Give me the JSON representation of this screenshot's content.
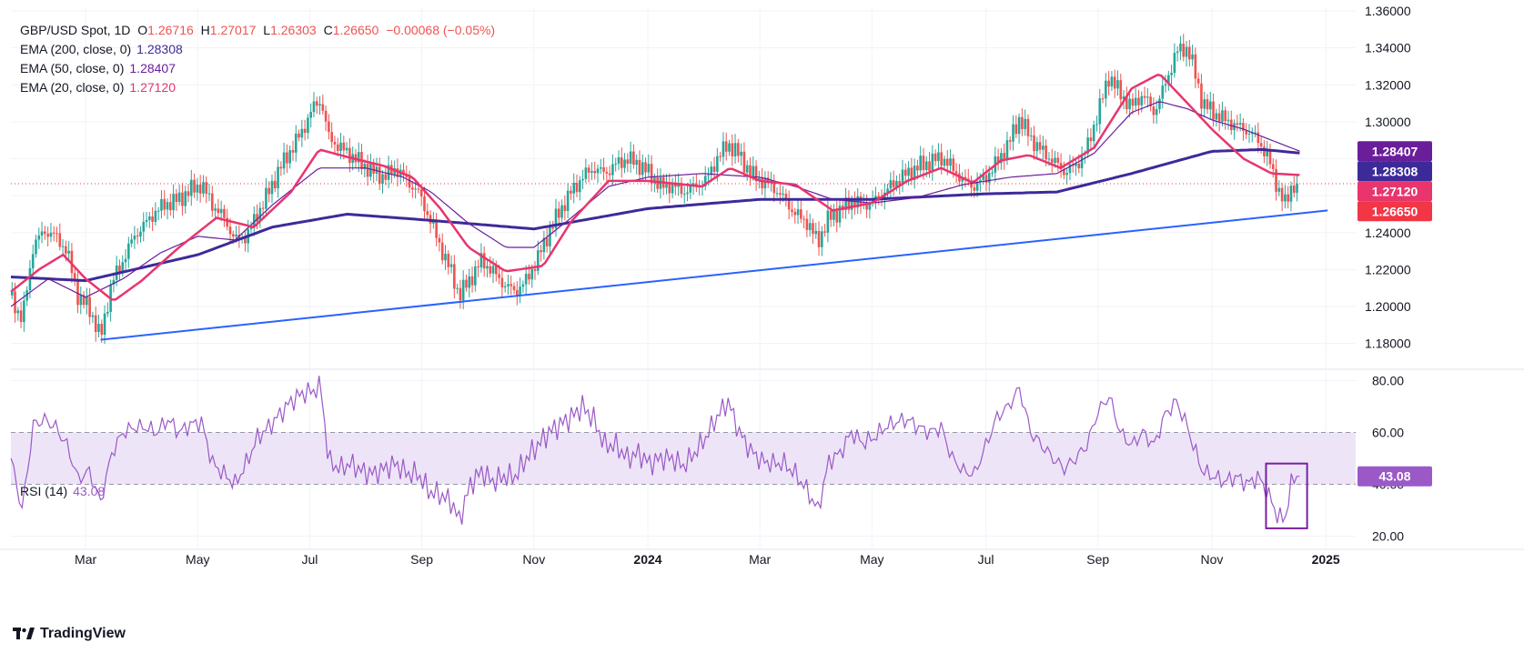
{
  "header": {
    "symbol": "GBP/USD Spot, 1D",
    "o_label": "O",
    "o_value": "1.26716",
    "h_label": "H",
    "h_value": "1.27017",
    "l_label": "L",
    "l_value": "1.26303",
    "c_label": "C",
    "c_value": "1.26650",
    "change": "−0.00068 (−0.05%)"
  },
  "indicators": {
    "ema200": {
      "label": "EMA (200, close, 0)",
      "value": "1.28308",
      "color": "#3d2a9a"
    },
    "ema50": {
      "label": "EMA (50, close, 0)",
      "value": "1.28407",
      "color": "#6a1e9a"
    },
    "ema20": {
      "label": "EMA (20, close, 0)",
      "value": "1.27120",
      "color": "#e8356d"
    },
    "rsi": {
      "label": "RSI (14)",
      "value": "43.08",
      "color": "#9b59c8"
    }
  },
  "colors": {
    "up": "#26a69a",
    "down": "#ef5350",
    "trendline": "#2962ff",
    "rsi_band": "#ede5f7",
    "price_line": "#f23645"
  },
  "branding": {
    "text": "TradingView",
    "icon": "tradingview-logo-icon"
  },
  "chart_data": {
    "type": "candlestick",
    "price_axis": {
      "ticks": [
        "1.36000",
        "1.34000",
        "1.32000",
        "1.30000",
        "1.28000",
        "1.26000",
        "1.24000",
        "1.22000",
        "1.20000",
        "1.18000"
      ],
      "tick_values": [
        1.36,
        1.34,
        1.32,
        1.3,
        1.28,
        1.26,
        1.24,
        1.22,
        1.2,
        1.18
      ],
      "range": [
        1.168,
        1.362
      ]
    },
    "price_badges": [
      {
        "value": 1.28407,
        "text": "1.28407",
        "color": "#6a1e9a"
      },
      {
        "value": 1.28308,
        "text": "1.28308",
        "color": "#3d2a9a"
      },
      {
        "value": 1.2712,
        "text": "1.27120",
        "color": "#e8356d"
      },
      {
        "value": 1.2665,
        "text": "1.26650",
        "color": "#f23645"
      }
    ],
    "rsi_axis": {
      "ticks": [
        "80.00",
        "60.00",
        "40.00",
        "20.00"
      ],
      "tick_values": [
        80,
        60,
        40,
        20
      ],
      "range": [
        17,
        83
      ],
      "band": [
        40,
        60
      ],
      "badge": {
        "value": 43.08,
        "text": "43.08"
      }
    },
    "time_axis": {
      "labels": [
        "Mar",
        "May",
        "Jul",
        "Sep",
        "Nov",
        "2024",
        "Mar",
        "May",
        "Jul",
        "Sep",
        "Nov",
        "2025"
      ],
      "bold": [
        false,
        false,
        false,
        false,
        false,
        true,
        false,
        false,
        false,
        false,
        false,
        true
      ],
      "positions": [
        40,
        100,
        160,
        220,
        280,
        341,
        401,
        461,
        522,
        582,
        643,
        704
      ]
    },
    "ema200_points": [
      [
        0,
        1.216
      ],
      [
        40,
        1.214
      ],
      [
        100,
        1.228
      ],
      [
        140,
        1.243
      ],
      [
        180,
        1.25
      ],
      [
        220,
        1.247
      ],
      [
        280,
        1.242
      ],
      [
        341,
        1.253
      ],
      [
        401,
        1.258
      ],
      [
        461,
        1.258
      ],
      [
        522,
        1.261
      ],
      [
        560,
        1.262
      ],
      [
        600,
        1.272
      ],
      [
        643,
        1.284
      ],
      [
        670,
        1.285
      ],
      [
        690,
        1.2831
      ]
    ],
    "ema50_points": [
      [
        0,
        1.2
      ],
      [
        20,
        1.215
      ],
      [
        40,
        1.205
      ],
      [
        60,
        1.215
      ],
      [
        80,
        1.229
      ],
      [
        100,
        1.238
      ],
      [
        120,
        1.236
      ],
      [
        140,
        1.255
      ],
      [
        165,
        1.275
      ],
      [
        190,
        1.275
      ],
      [
        210,
        1.27
      ],
      [
        225,
        1.262
      ],
      [
        245,
        1.245
      ],
      [
        265,
        1.232
      ],
      [
        280,
        1.232
      ],
      [
        300,
        1.248
      ],
      [
        320,
        1.265
      ],
      [
        341,
        1.27
      ],
      [
        370,
        1.272
      ],
      [
        401,
        1.27
      ],
      [
        420,
        1.265
      ],
      [
        440,
        1.258
      ],
      [
        461,
        1.256
      ],
      [
        485,
        1.259
      ],
      [
        510,
        1.266
      ],
      [
        535,
        1.27
      ],
      [
        560,
        1.272
      ],
      [
        580,
        1.283
      ],
      [
        600,
        1.305
      ],
      [
        615,
        1.311
      ],
      [
        630,
        1.307
      ],
      [
        643,
        1.301
      ],
      [
        660,
        1.296
      ],
      [
        675,
        1.29
      ],
      [
        690,
        1.2841
      ]
    ],
    "ema20_points": [
      [
        0,
        1.208
      ],
      [
        15,
        1.22
      ],
      [
        28,
        1.228
      ],
      [
        40,
        1.215
      ],
      [
        55,
        1.203
      ],
      [
        70,
        1.214
      ],
      [
        90,
        1.232
      ],
      [
        110,
        1.248
      ],
      [
        130,
        1.243
      ],
      [
        150,
        1.262
      ],
      [
        165,
        1.285
      ],
      [
        180,
        1.281
      ],
      [
        200,
        1.276
      ],
      [
        215,
        1.27
      ],
      [
        230,
        1.253
      ],
      [
        245,
        1.232
      ],
      [
        265,
        1.219
      ],
      [
        285,
        1.222
      ],
      [
        300,
        1.246
      ],
      [
        320,
        1.268
      ],
      [
        341,
        1.268
      ],
      [
        370,
        1.265
      ],
      [
        385,
        1.275
      ],
      [
        401,
        1.268
      ],
      [
        420,
        1.266
      ],
      [
        440,
        1.252
      ],
      [
        461,
        1.256
      ],
      [
        480,
        1.268
      ],
      [
        498,
        1.275
      ],
      [
        515,
        1.267
      ],
      [
        530,
        1.279
      ],
      [
        545,
        1.282
      ],
      [
        562,
        1.275
      ],
      [
        580,
        1.286
      ],
      [
        600,
        1.318
      ],
      [
        615,
        1.326
      ],
      [
        630,
        1.31
      ],
      [
        643,
        1.296
      ],
      [
        660,
        1.28
      ],
      [
        675,
        1.272
      ],
      [
        690,
        1.2712
      ]
    ],
    "close_points": [
      [
        0,
        1.206
      ],
      [
        6,
        1.192
      ],
      [
        12,
        1.233
      ],
      [
        18,
        1.241
      ],
      [
        24,
        1.238
      ],
      [
        30,
        1.23
      ],
      [
        36,
        1.205
      ],
      [
        42,
        1.199
      ],
      [
        48,
        1.183
      ],
      [
        54,
        1.213
      ],
      [
        60,
        1.225
      ],
      [
        66,
        1.238
      ],
      [
        72,
        1.245
      ],
      [
        78,
        1.252
      ],
      [
        84,
        1.256
      ],
      [
        90,
        1.258
      ],
      [
        96,
        1.263
      ],
      [
        102,
        1.266
      ],
      [
        108,
        1.255
      ],
      [
        114,
        1.248
      ],
      [
        120,
        1.236
      ],
      [
        126,
        1.238
      ],
      [
        132,
        1.25
      ],
      [
        138,
        1.262
      ],
      [
        144,
        1.275
      ],
      [
        150,
        1.285
      ],
      [
        156,
        1.295
      ],
      [
        162,
        1.308
      ],
      [
        166,
        1.312
      ],
      [
        170,
        1.292
      ],
      [
        176,
        1.286
      ],
      [
        182,
        1.282
      ],
      [
        188,
        1.277
      ],
      [
        194,
        1.273
      ],
      [
        200,
        1.27
      ],
      [
        206,
        1.275
      ],
      [
        212,
        1.268
      ],
      [
        218,
        1.262
      ],
      [
        224,
        1.248
      ],
      [
        230,
        1.232
      ],
      [
        236,
        1.218
      ],
      [
        240,
        1.206
      ],
      [
        246,
        1.215
      ],
      [
        252,
        1.225
      ],
      [
        258,
        1.219
      ],
      [
        264,
        1.212
      ],
      [
        270,
        1.208
      ],
      [
        276,
        1.214
      ],
      [
        282,
        1.226
      ],
      [
        288,
        1.24
      ],
      [
        294,
        1.252
      ],
      [
        300,
        1.262
      ],
      [
        306,
        1.27
      ],
      [
        312,
        1.275
      ],
      [
        318,
        1.272
      ],
      [
        324,
        1.277
      ],
      [
        330,
        1.28
      ],
      [
        336,
        1.277
      ],
      [
        342,
        1.272
      ],
      [
        348,
        1.265
      ],
      [
        354,
        1.266
      ],
      [
        360,
        1.262
      ],
      [
        366,
        1.265
      ],
      [
        372,
        1.268
      ],
      [
        378,
        1.28
      ],
      [
        384,
        1.288
      ],
      [
        390,
        1.282
      ],
      [
        396,
        1.272
      ],
      [
        402,
        1.268
      ],
      [
        408,
        1.265
      ],
      [
        414,
        1.258
      ],
      [
        420,
        1.25
      ],
      [
        426,
        1.246
      ],
      [
        432,
        1.235
      ],
      [
        438,
        1.248
      ],
      [
        444,
        1.252
      ],
      [
        450,
        1.257
      ],
      [
        456,
        1.255
      ],
      [
        462,
        1.257
      ],
      [
        468,
        1.262
      ],
      [
        474,
        1.268
      ],
      [
        480,
        1.272
      ],
      [
        486,
        1.276
      ],
      [
        492,
        1.278
      ],
      [
        498,
        1.281
      ],
      [
        504,
        1.275
      ],
      [
        510,
        1.268
      ],
      [
        516,
        1.265
      ],
      [
        522,
        1.27
      ],
      [
        528,
        1.278
      ],
      [
        534,
        1.288
      ],
      [
        540,
        1.302
      ],
      [
        546,
        1.291
      ],
      [
        552,
        1.284
      ],
      [
        558,
        1.279
      ],
      [
        564,
        1.273
      ],
      [
        570,
        1.276
      ],
      [
        576,
        1.285
      ],
      [
        582,
        1.305
      ],
      [
        588,
        1.325
      ],
      [
        594,
        1.315
      ],
      [
        600,
        1.308
      ],
      [
        606,
        1.315
      ],
      [
        612,
        1.305
      ],
      [
        618,
        1.32
      ],
      [
        624,
        1.338
      ],
      [
        630,
        1.34
      ],
      [
        633,
        1.33
      ],
      [
        638,
        1.31
      ],
      [
        644,
        1.305
      ],
      [
        650,
        1.301
      ],
      [
        656,
        1.298
      ],
      [
        662,
        1.295
      ],
      [
        668,
        1.29
      ],
      [
        674,
        1.278
      ],
      [
        678,
        1.265
      ],
      [
        682,
        1.255
      ],
      [
        686,
        1.266
      ],
      [
        690,
        1.2665
      ]
    ],
    "trendline": [
      [
        48,
        1.182
      ],
      [
        705,
        1.252
      ]
    ],
    "rsi_points": [
      [
        0,
        50
      ],
      [
        6,
        30
      ],
      [
        12,
        63
      ],
      [
        18,
        65
      ],
      [
        24,
        62
      ],
      [
        30,
        55
      ],
      [
        36,
        42
      ],
      [
        42,
        45
      ],
      [
        48,
        33
      ],
      [
        54,
        52
      ],
      [
        60,
        60
      ],
      [
        66,
        62
      ],
      [
        72,
        62
      ],
      [
        78,
        60
      ],
      [
        84,
        65
      ],
      [
        90,
        60
      ],
      [
        96,
        63
      ],
      [
        102,
        64
      ],
      [
        108,
        48
      ],
      [
        114,
        44
      ],
      [
        120,
        40
      ],
      [
        126,
        48
      ],
      [
        132,
        58
      ],
      [
        138,
        62
      ],
      [
        144,
        67
      ],
      [
        150,
        72
      ],
      [
        156,
        75
      ],
      [
        162,
        76
      ],
      [
        166,
        78
      ],
      [
        170,
        49
      ],
      [
        176,
        46
      ],
      [
        182,
        48
      ],
      [
        188,
        45
      ],
      [
        194,
        44
      ],
      [
        200,
        46
      ],
      [
        206,
        48
      ],
      [
        212,
        44
      ],
      [
        218,
        44
      ],
      [
        224,
        37
      ],
      [
        230,
        36
      ],
      [
        236,
        33
      ],
      [
        240,
        26
      ],
      [
        246,
        40
      ],
      [
        252,
        45
      ],
      [
        258,
        41
      ],
      [
        264,
        43
      ],
      [
        270,
        43
      ],
      [
        276,
        50
      ],
      [
        282,
        55
      ],
      [
        288,
        60
      ],
      [
        294,
        63
      ],
      [
        300,
        66
      ],
      [
        306,
        70
      ],
      [
        312,
        65
      ],
      [
        318,
        55
      ],
      [
        324,
        55
      ],
      [
        330,
        50
      ],
      [
        336,
        52
      ],
      [
        342,
        48
      ],
      [
        348,
        50
      ],
      [
        354,
        50
      ],
      [
        360,
        47
      ],
      [
        366,
        52
      ],
      [
        372,
        58
      ],
      [
        378,
        66
      ],
      [
        384,
        72
      ],
      [
        390,
        60
      ],
      [
        396,
        53
      ],
      [
        402,
        49
      ],
      [
        408,
        48
      ],
      [
        414,
        48
      ],
      [
        420,
        44
      ],
      [
        426,
        38
      ],
      [
        432,
        30
      ],
      [
        438,
        49
      ],
      [
        444,
        52
      ],
      [
        450,
        60
      ],
      [
        456,
        56
      ],
      [
        462,
        58
      ],
      [
        468,
        62
      ],
      [
        474,
        64
      ],
      [
        480,
        65
      ],
      [
        486,
        62
      ],
      [
        492,
        60
      ],
      [
        498,
        62
      ],
      [
        504,
        50
      ],
      [
        510,
        45
      ],
      [
        516,
        44
      ],
      [
        522,
        55
      ],
      [
        528,
        66
      ],
      [
        534,
        70
      ],
      [
        540,
        77
      ],
      [
        546,
        60
      ],
      [
        552,
        55
      ],
      [
        558,
        50
      ],
      [
        564,
        46
      ],
      [
        570,
        50
      ],
      [
        576,
        55
      ],
      [
        582,
        68
      ],
      [
        588,
        74
      ],
      [
        594,
        60
      ],
      [
        600,
        55
      ],
      [
        606,
        60
      ],
      [
        612,
        55
      ],
      [
        618,
        67
      ],
      [
        624,
        72
      ],
      [
        630,
        62
      ],
      [
        633,
        55
      ],
      [
        638,
        45
      ],
      [
        644,
        43
      ],
      [
        650,
        41
      ],
      [
        656,
        43
      ],
      [
        662,
        40
      ],
      [
        668,
        43
      ],
      [
        674,
        35
      ],
      [
        678,
        28
      ],
      [
        682,
        26
      ],
      [
        686,
        42
      ],
      [
        690,
        43.08
      ]
    ],
    "rsi_box": {
      "x": [
        672,
        694
      ],
      "y": [
        23,
        48
      ]
    },
    "current_price": 1.2665
  }
}
